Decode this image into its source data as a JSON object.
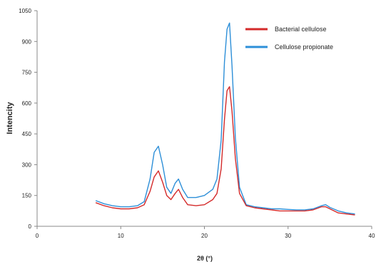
{
  "chart_data": {
    "type": "line",
    "title": "",
    "xlabel": "2θ (°)",
    "ylabel": "Intencity",
    "xlim": [
      0,
      40
    ],
    "ylim": [
      0,
      1050
    ],
    "xticks": [
      0,
      10,
      20,
      30,
      40
    ],
    "yticks": [
      0,
      150,
      300,
      450,
      600,
      750,
      900,
      1050
    ],
    "grid": false,
    "legend_position": "top-right",
    "series": [
      {
        "name": "Bacterial cellulose",
        "color": "#d42a2a",
        "x": [
          7,
          8,
          9,
          10,
          11,
          12,
          12.8,
          13.5,
          14,
          14.5,
          15,
          15.5,
          16,
          16.5,
          16.9,
          17.4,
          18,
          19,
          20,
          21,
          21.5,
          22,
          22.4,
          22.7,
          23,
          23.3,
          23.7,
          24.2,
          25,
          26,
          27,
          28,
          29,
          30,
          31,
          32,
          33,
          34,
          34.5,
          35,
          36,
          37,
          38
        ],
        "y": [
          115,
          100,
          90,
          85,
          85,
          90,
          105,
          170,
          240,
          270,
          215,
          150,
          130,
          160,
          180,
          140,
          105,
          100,
          105,
          130,
          160,
          280,
          520,
          660,
          680,
          560,
          330,
          160,
          100,
          90,
          85,
          80,
          75,
          75,
          75,
          75,
          80,
          95,
          95,
          85,
          65,
          60,
          55
        ]
      },
      {
        "name": "Cellulose propionate",
        "color": "#2d8fd8",
        "x": [
          7,
          8,
          9,
          10,
          11,
          12,
          12.8,
          13.5,
          14,
          14.5,
          15,
          15.5,
          16,
          16.5,
          16.9,
          17.4,
          18,
          19,
          20,
          21,
          21.5,
          22,
          22.4,
          22.7,
          23,
          23.3,
          23.7,
          24.2,
          25,
          26,
          27,
          28,
          29,
          30,
          31,
          32,
          33,
          34,
          34.5,
          35,
          36,
          37,
          38
        ],
        "y": [
          125,
          110,
          100,
          95,
          95,
          100,
          120,
          230,
          360,
          390,
          300,
          190,
          160,
          210,
          230,
          180,
          140,
          140,
          150,
          180,
          230,
          420,
          800,
          960,
          990,
          780,
          430,
          190,
          105,
          95,
          90,
          85,
          85,
          82,
          80,
          80,
          85,
          100,
          105,
          92,
          75,
          65,
          60
        ]
      }
    ]
  }
}
